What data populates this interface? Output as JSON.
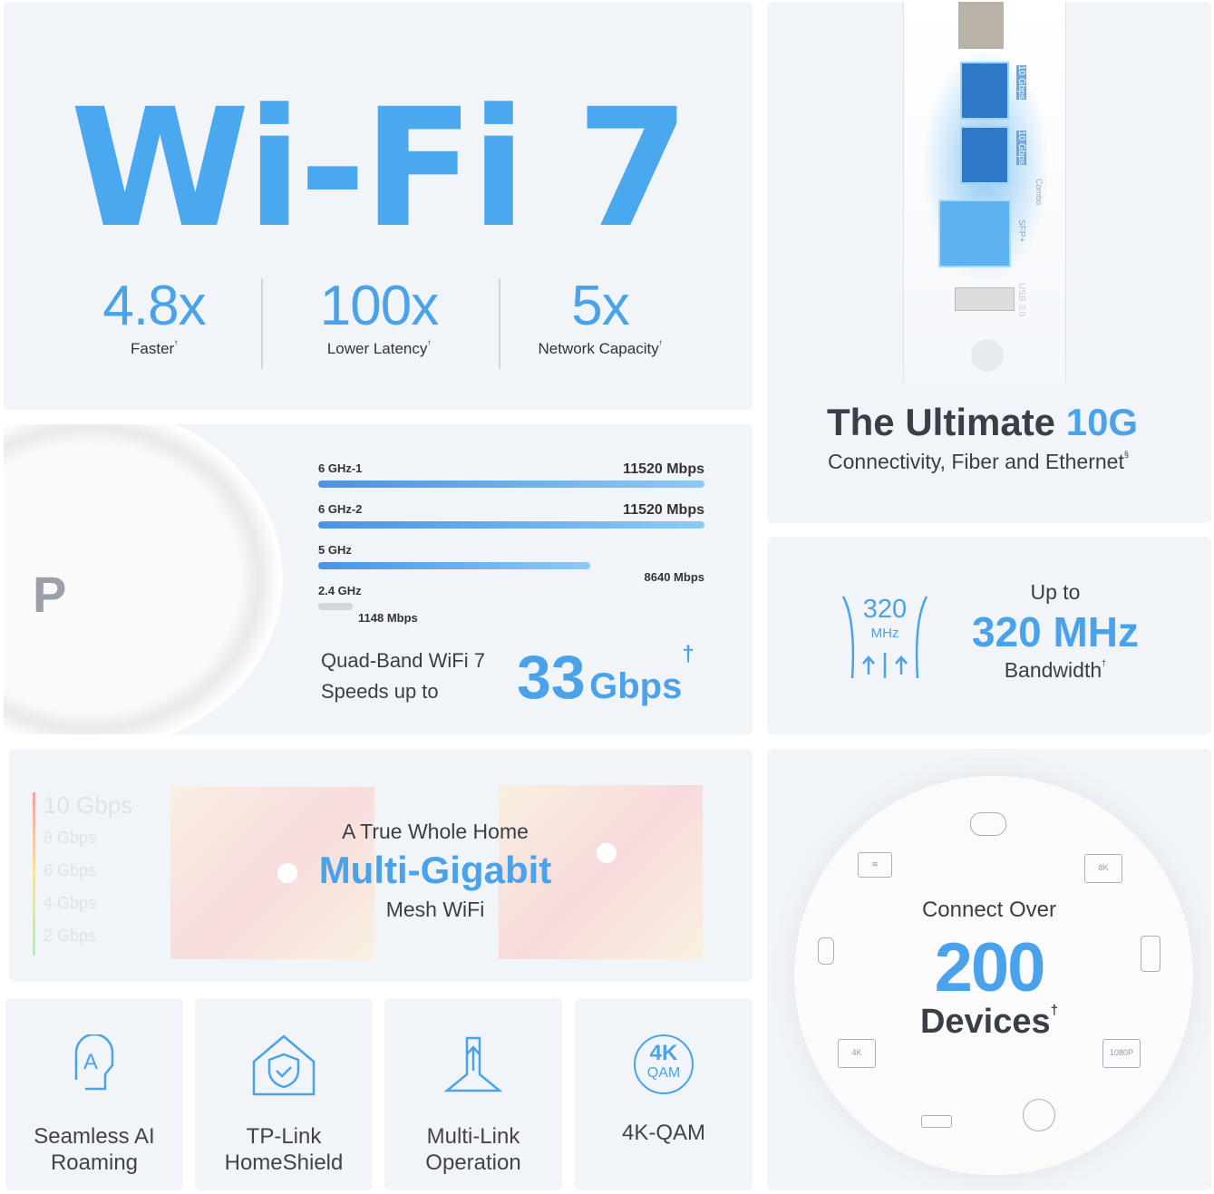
{
  "wifi7": {
    "title": "Wi-Fi 7",
    "stats": [
      {
        "value": "4.8x",
        "label": "Faster",
        "mark": "†"
      },
      {
        "value": "100x",
        "label": "Lower Latency",
        "mark": "†"
      },
      {
        "value": "5x",
        "label": "Network Capacity",
        "mark": "†"
      }
    ]
  },
  "ports": {
    "labels": [
      "10 Gbps",
      "10 Gbps",
      "Combo",
      "SFP+",
      "USB 3.0"
    ],
    "headline_dark": "The Ultimate",
    "headline_blue": "10G",
    "subtitle": "Connectivity, Fiber and Ethernet",
    "mark": "§"
  },
  "bands": {
    "items": [
      {
        "label": "6 GHz-1",
        "value": "11520 Mbps",
        "mbps": 11520
      },
      {
        "label": "6 GHz-2",
        "value": "11520 Mbps",
        "mbps": 11520
      },
      {
        "label": "5 GHz",
        "value": "8640 Mbps",
        "mbps": 8640
      },
      {
        "label": "2.4 GHz",
        "value": "1148 Mbps",
        "mbps": 1148
      }
    ],
    "line1": "Quad-Band WiFi 7",
    "line2": "Speeds up to",
    "speed_num": "33",
    "speed_unit": "Gbps",
    "mark": "†"
  },
  "channel": {
    "icon_num": "320",
    "icon_unit": "MHz",
    "upto": "Up to",
    "value": "320 MHz",
    "label": "Bandwidth",
    "mark": "†"
  },
  "mesh": {
    "scale": [
      "10 Gbps",
      "8 Gbps",
      "6 Gbps",
      "4 Gbps",
      "2 Gbps"
    ],
    "line1": "A True Whole Home",
    "line2": "Multi-Gigabit",
    "line3": "Mesh WiFi"
  },
  "devices": {
    "line1": "Connect Over",
    "number": "200",
    "line2": "Devices",
    "mark": "†",
    "tv_labels": [
      "8K",
      "4K",
      "1080P"
    ]
  },
  "features": [
    {
      "label": "Seamless AI Roaming",
      "icon": "ai-roaming-icon"
    },
    {
      "label": "TP-Link HomeShield",
      "icon": "shield-icon"
    },
    {
      "label": "Multi-Link Operation",
      "icon": "multi-link-icon"
    },
    {
      "label": "4K-QAM",
      "icon": "4k-qam-icon",
      "icon_top": "4K",
      "icon_bottom": "QAM"
    }
  ],
  "colors": {
    "accent": "#4aa3ea",
    "text": "#3a3f47",
    "panel": "#f1f4f8"
  }
}
